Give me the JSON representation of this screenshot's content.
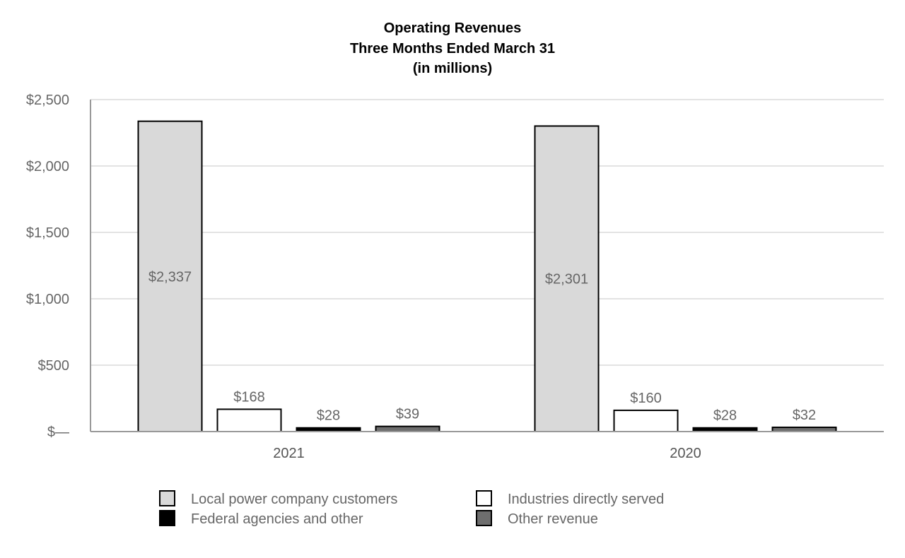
{
  "chart_data": {
    "type": "bar",
    "title_lines": [
      "Operating Revenues",
      "Three Months Ended March 31",
      "(in millions)"
    ],
    "categories": [
      "2021",
      "2020"
    ],
    "series": [
      {
        "name": "Local power company customers",
        "values": [
          2337,
          2301
        ],
        "labels": [
          "$2,337",
          "$2,301"
        ],
        "color": "#d9d9d9",
        "label_inside": true
      },
      {
        "name": "Industries directly served",
        "values": [
          168,
          160
        ],
        "labels": [
          "$168",
          "$160"
        ],
        "color": "#ffffff",
        "label_inside": false
      },
      {
        "name": "Federal agencies and other",
        "values": [
          28,
          28
        ],
        "labels": [
          "$28",
          "$28"
        ],
        "color": "#000000",
        "label_inside": false
      },
      {
        "name": "Other revenue",
        "values": [
          39,
          32
        ],
        "labels": [
          "$39",
          "$32"
        ],
        "color": "#6e6e6e",
        "label_inside": false
      }
    ],
    "yticks": [
      0,
      500,
      1000,
      1500,
      2000,
      2500
    ],
    "ytick_labels": [
      "$—",
      "$500",
      "$1,000",
      "$1,500",
      "$2,000",
      "$2,500"
    ],
    "ylim": [
      0,
      2500
    ],
    "grid": true,
    "legend_position": "bottom"
  }
}
